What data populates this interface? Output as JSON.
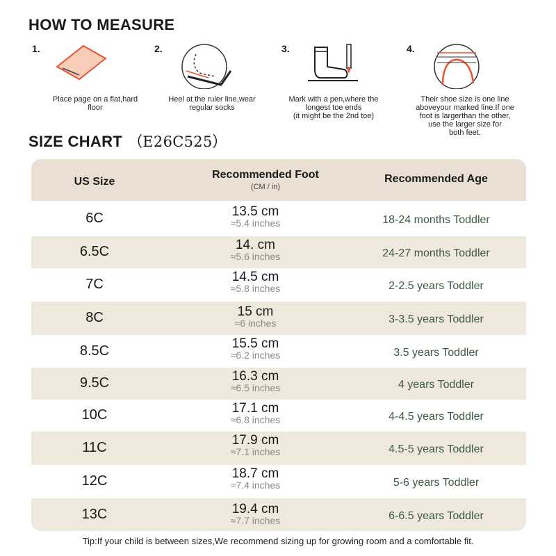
{
  "how_to": {
    "title": "HOW TO MEASURE",
    "steps": [
      {
        "num": "1.",
        "caption": "Place page on a flat,hard\nfloor",
        "icon": "paper-on-floor-icon"
      },
      {
        "num": "2.",
        "caption": "Heel at the ruler line,wear\nregular socks",
        "icon": "heel-on-ruler-icon"
      },
      {
        "num": "3.",
        "caption": "Mark with a pen,where the\nlongest toe ends\n(it might be the 2nd toe)",
        "icon": "sock-and-pen-icon"
      },
      {
        "num": "4.",
        "caption": "Their shoe size is one line\naboveyour marked line.If one\nfoot is largerthan the other,\nuse the larger size for\nboth feet.",
        "icon": "toe-line-icon"
      }
    ]
  },
  "size_chart": {
    "title": "SIZE CHART",
    "model": "（E26C525）",
    "headers": {
      "size": "US Size",
      "foot": "Recommended Foot",
      "foot_sub": "(CM / in)",
      "age": "Recommended Age"
    },
    "rows": [
      {
        "size": "6C",
        "cm": "13.5 cm",
        "in": "≈5.4 inches",
        "age": "18-24 months Toddler"
      },
      {
        "size": "6.5C",
        "cm": "14. cm",
        "in": "≈5.6 inches",
        "age": "24-27 months Toddler"
      },
      {
        "size": "7C",
        "cm": "14.5 cm",
        "in": "≈5.8 inches",
        "age": "2-2.5 years Toddler"
      },
      {
        "size": "8C",
        "cm": "15 cm",
        "in": "≈6 inches",
        "age": "3-3.5 years Toddler"
      },
      {
        "size": "8.5C",
        "cm": "15.5 cm",
        "in": "≈6.2 inches",
        "age": "3.5 years Toddler"
      },
      {
        "size": "9.5C",
        "cm": "16.3 cm",
        "in": "≈6.5 inches",
        "age": "4 years Toddler"
      },
      {
        "size": "10C",
        "cm": "17.1 cm",
        "in": "≈6.8 inches",
        "age": "4-4.5 years Toddler"
      },
      {
        "size": "11C",
        "cm": "17.9 cm",
        "in": "≈7.1 inches",
        "age": "4.5-5 years Toddler"
      },
      {
        "size": "12C",
        "cm": "18.7 cm",
        "in": "≈7.4 inches",
        "age": "5-6 years Toddler"
      },
      {
        "size": "13C",
        "cm": "19.4 cm",
        "in": "≈7.7 inches",
        "age": "6-6.5 years Toddler"
      }
    ]
  },
  "tip": "Tip:If your child is between sizes,We recommend sizing up for growing room and a comfortable fit.",
  "colors": {
    "accent": "#e8532f",
    "header_bg": "#e9e0d3",
    "row_alt": "#efe8dc",
    "age_text": "#3c5a44"
  }
}
